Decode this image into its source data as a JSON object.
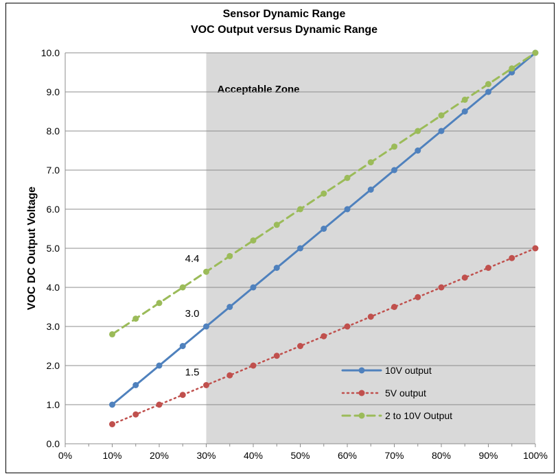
{
  "chart_data": {
    "type": "line",
    "title": "Sensor Dynamic Range",
    "subtitle": "VOC Output versus Dynamic Range",
    "ylabel": "VOC DC Output Voltage",
    "xlabel": "",
    "xlim": [
      0,
      100
    ],
    "ylim": [
      0,
      10
    ],
    "x_ticks": [
      "0%",
      "10%",
      "20%",
      "30%",
      "40%",
      "50%",
      "60%",
      "70%",
      "80%",
      "90%",
      "100%"
    ],
    "y_ticks": [
      "0.0",
      "1.0",
      "2.0",
      "3.0",
      "4.0",
      "5.0",
      "6.0",
      "7.0",
      "8.0",
      "9.0",
      "10.0"
    ],
    "grid": "horizontal",
    "legend_position": "bottom-right",
    "zone": {
      "label": "Acceptable Zone",
      "x_start": 30,
      "x_end": 100,
      "color": "#d9d9d9"
    },
    "x": [
      10,
      15,
      20,
      25,
      30,
      35,
      40,
      45,
      50,
      55,
      60,
      65,
      70,
      75,
      80,
      85,
      90,
      95,
      100
    ],
    "series": [
      {
        "name": "10V output",
        "style": "solid",
        "color": "#4f81bd",
        "values": [
          1.0,
          1.5,
          2.0,
          2.5,
          3.0,
          3.5,
          4.0,
          4.5,
          5.0,
          5.5,
          6.0,
          6.5,
          7.0,
          7.5,
          8.0,
          8.5,
          9.0,
          9.5,
          10.0
        ]
      },
      {
        "name": "5V output",
        "style": "dotted",
        "color": "#c0504d",
        "values": [
          0.5,
          0.75,
          1.0,
          1.25,
          1.5,
          1.75,
          2.0,
          2.25,
          2.5,
          2.75,
          3.0,
          3.25,
          3.5,
          3.75,
          4.0,
          4.25,
          4.5,
          4.75,
          5.0
        ]
      },
      {
        "name": "2 to 10V Output",
        "style": "dashed",
        "color": "#9bbb59",
        "values": [
          2.8,
          3.2,
          3.6,
          4.0,
          4.4,
          4.8,
          5.2,
          5.6,
          6.0,
          6.4,
          6.8,
          7.2,
          7.6,
          8.0,
          8.4,
          8.8,
          9.2,
          9.6,
          10.0
        ]
      }
    ],
    "annotations": [
      {
        "text": "4.4",
        "x": 30,
        "y": 4.4
      },
      {
        "text": "3.0",
        "x": 30,
        "y": 3.0
      },
      {
        "text": "1.5",
        "x": 30,
        "y": 1.5
      }
    ]
  }
}
